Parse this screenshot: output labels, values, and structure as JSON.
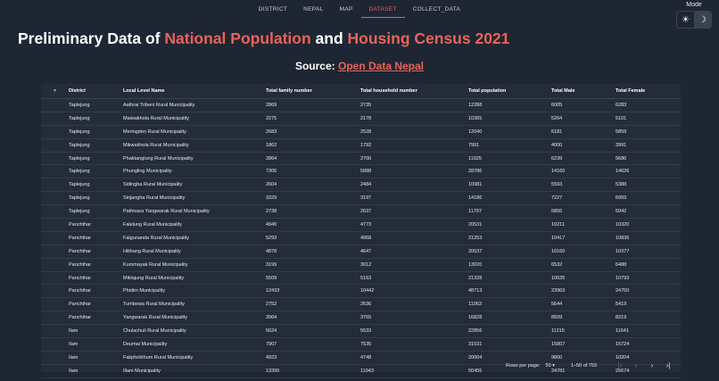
{
  "nav": {
    "tabs": [
      {
        "label": "DISTRICT",
        "active": false
      },
      {
        "label": "NEPAL",
        "active": false
      },
      {
        "label": "MAP",
        "active": false
      },
      {
        "label": "DATASET",
        "active": true
      },
      {
        "label": "COLLECT_DATA",
        "active": false
      }
    ]
  },
  "mode": {
    "label": "Mode",
    "light_icon": "sun-icon",
    "dark_icon": "moon-icon",
    "selected": "dark"
  },
  "title": {
    "part1": "Preliminary Data of ",
    "part2": "National Population",
    "part3": " and ",
    "part4": "Housing Census 2021"
  },
  "source": {
    "label": "Source: ",
    "link_text": "Open Data Nepal"
  },
  "table": {
    "columns": [
      "District",
      "Local Level Name",
      "Total family number",
      "Total household number",
      "Total population",
      "Total Male",
      "Total Female"
    ],
    "rows": [
      [
        "Taplejung",
        "Aathrai Tribeni Rural Municipality",
        "2869",
        "2735",
        "12288",
        "6005",
        "6283"
      ],
      [
        "Taplejung",
        "Maiwakhola Rural Municipality",
        "2275",
        "2178",
        "10365",
        "5264",
        "5101"
      ],
      [
        "Taplejung",
        "Meringden Rural Municipality",
        "2683",
        "2528",
        "12040",
        "6181",
        "5859"
      ],
      [
        "Taplejung",
        "Mikwakhola Rural Municipality",
        "1862",
        "1792",
        "7991",
        "4000",
        "3991"
      ],
      [
        "Taplejung",
        "Phaktanglung Rural Municipality",
        "2864",
        "2700",
        "11925",
        "6239",
        "5686"
      ],
      [
        "Taplejung",
        "Phungling Municipality",
        "7306",
        "5888",
        "28786",
        "14160",
        "14626"
      ],
      [
        "Taplejung",
        "Sidingba Rural Municipality",
        "2604",
        "2484",
        "10981",
        "5593",
        "5388"
      ],
      [
        "Taplejung",
        "Sirijangha Rural Municipality",
        "3329",
        "3197",
        "14186",
        "7227",
        "6959"
      ],
      [
        "Taplejung",
        "Pathivara Yangwarak Rural Municipality",
        "2738",
        "2637",
        "11797",
        "5855",
        "5942"
      ],
      [
        "Panchthar",
        "Falelung Rural Municipality",
        "4940",
        "4773",
        "20531",
        "10211",
        "10320"
      ],
      [
        "Panchthar",
        "Falgunanda Rural Municipality",
        "5293",
        "4968",
        "21253",
        "10417",
        "10836"
      ],
      [
        "Panchthar",
        "Hilihang Rural Municipality",
        "4878",
        "4647",
        "20537",
        "10160",
        "10377"
      ],
      [
        "Panchthar",
        "Kummayak Rural Municipality",
        "3199",
        "3012",
        "13020",
        "6532",
        "6488"
      ],
      [
        "Panchthar",
        "Miklajung Rural Municipality",
        "5509",
        "5163",
        "21328",
        "10535",
        "10793"
      ],
      [
        "Panchthar",
        "Phidim Municipality",
        "12433",
        "10442",
        "48713",
        "23963",
        "24750"
      ],
      [
        "Panchthar",
        "Tumbewa Rural Municipality",
        "2752",
        "2636",
        "11063",
        "5644",
        "5419"
      ],
      [
        "Panchthar",
        "Yangwarak Rural Municipality",
        "3964",
        "3765",
        "16828",
        "8509",
        "8319"
      ],
      [
        "Ilam",
        "Chulachuli Rural Municipality",
        "5624",
        "5533",
        "22856",
        "11215",
        "11641"
      ],
      [
        "Ilam",
        "Deumai Municipality",
        "7907",
        "7535",
        "31531",
        "15807",
        "15724"
      ],
      [
        "Ilam",
        "Fakphokthum Rural Municipality",
        "4923",
        "4748",
        "20004",
        "9800",
        "10204"
      ],
      [
        "Ilam",
        "Illam Municipality",
        "13395",
        "11943",
        "50455",
        "24781",
        "25674"
      ]
    ]
  },
  "pagination": {
    "rows_per_page_label": "Rows per page:",
    "rows_per_page_value": "50",
    "range_text": "1–50 of 753"
  }
}
